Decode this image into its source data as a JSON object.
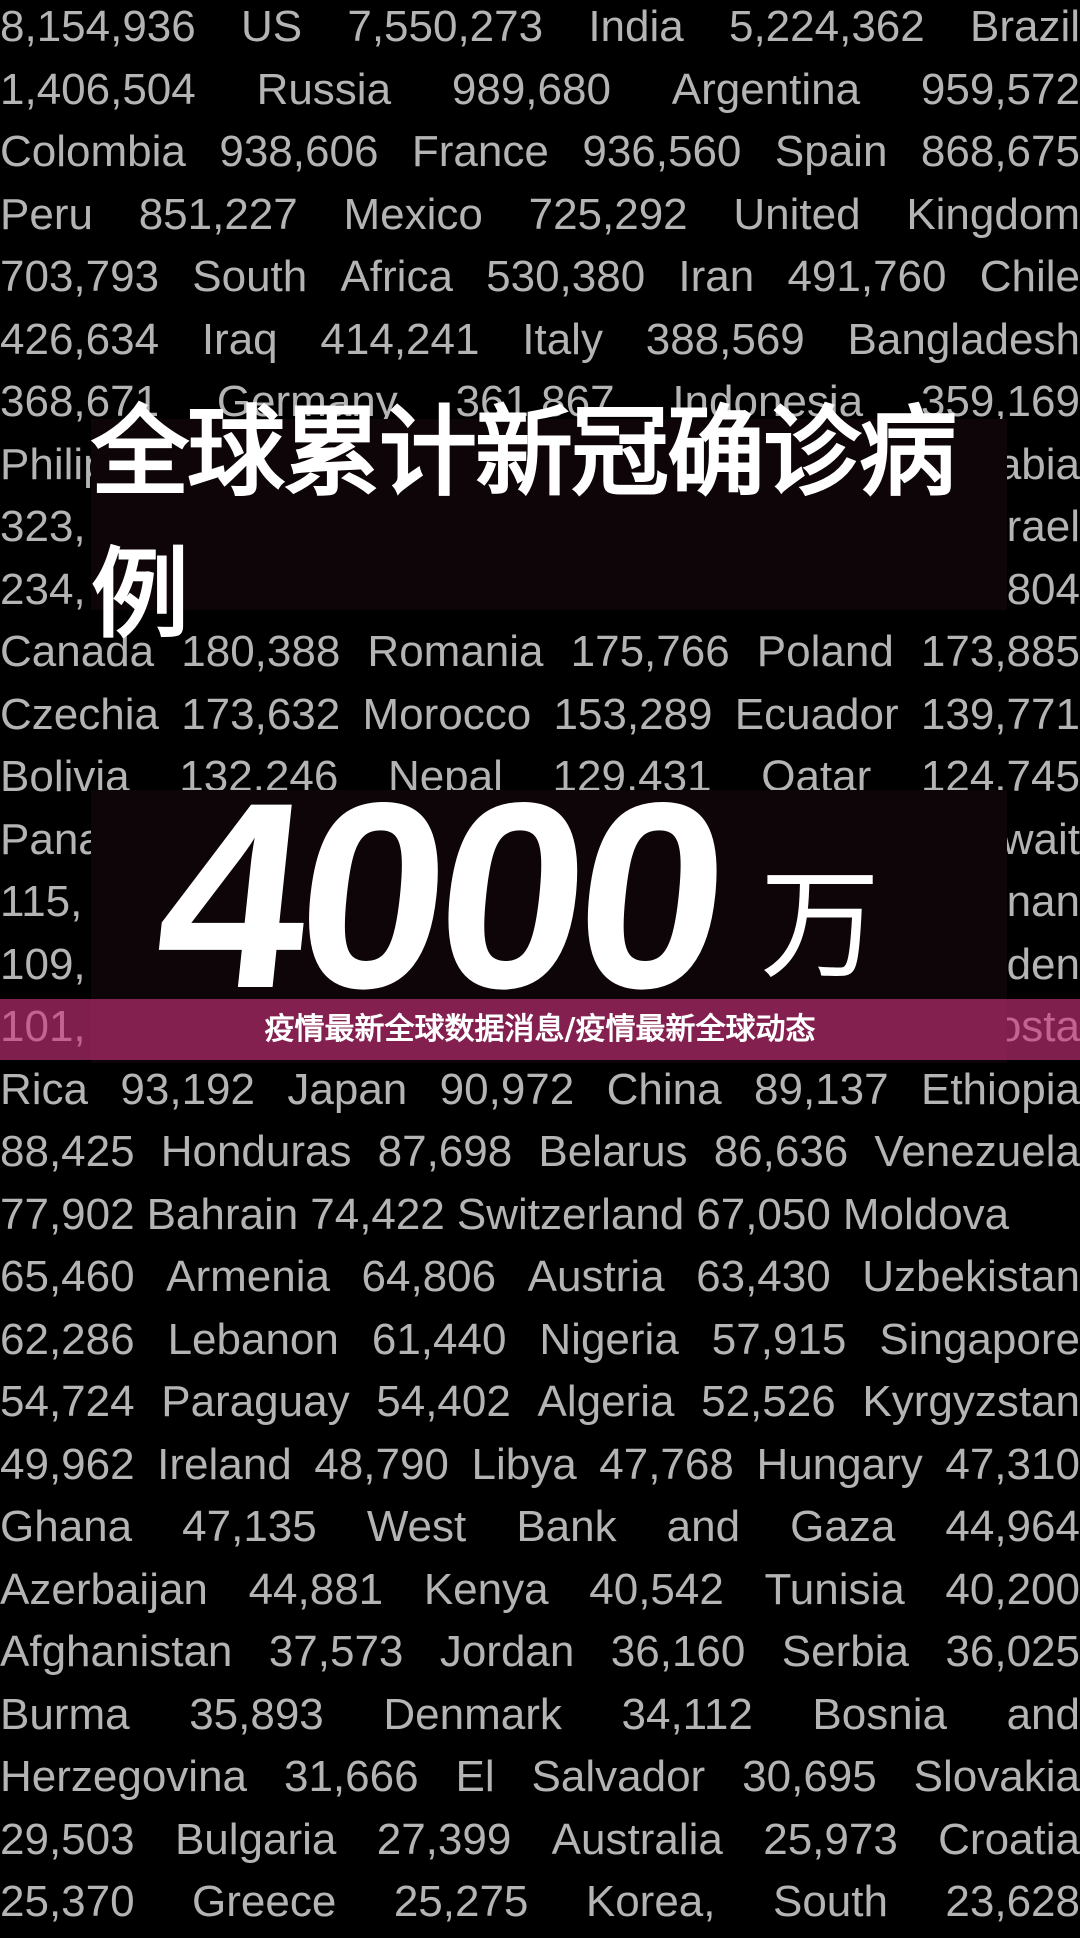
{
  "background_rows": [
    [
      "8,154,936",
      "US",
      "7,550,273",
      "India",
      "5,224,362",
      "Brazil"
    ],
    [
      "1,406,504",
      "Russia",
      "989,680",
      "Argentina",
      "959,572"
    ],
    [
      "Colombia",
      "938,606",
      "France",
      "936,560",
      "Spain",
      "868,675"
    ],
    [
      "Peru",
      "851,227",
      "Mexico",
      "725,292",
      "United",
      "Kingdom"
    ],
    [
      "703,793",
      "South",
      "Africa",
      "530,380",
      "Iran",
      "491,760",
      "Chile"
    ],
    [
      "426,634",
      "Iraq",
      "414,241",
      "Italy",
      "388,569",
      "Bangladesh"
    ],
    [
      "368,671",
      "Germany",
      "361,867",
      "Indonesia",
      "359,169"
    ],
    [
      "Philip",
      "abia"
    ],
    [
      "323,",
      "rael"
    ],
    [
      "234,",
      "804"
    ],
    [
      "Canada",
      "180,388",
      "Romania",
      "175,766",
      "Poland",
      "173,885"
    ],
    [
      "Czechia",
      "173,632",
      "Morocco",
      "153,289",
      "Ecuador",
      "139,771"
    ],
    [
      "Bolivia",
      "132,246",
      "Nepal",
      "129,431",
      "Qatar",
      "124,745"
    ],
    [
      "Pana",
      "wait"
    ],
    [
      "115,",
      "nan"
    ],
    [
      "109,",
      "den"
    ],
    [
      "101,",
      "osta"
    ],
    [
      "Rica",
      "93,192",
      "Japan",
      "90,972",
      "China",
      "89,137",
      "Ethiopia"
    ],
    [
      "88,425",
      "Honduras",
      "87,698",
      "Belarus",
      "86,636",
      "Venezuela"
    ],
    [
      "77,902",
      "Bahrain",
      "74,422",
      "Switzerland",
      "67,050",
      "Moldova"
    ],
    [
      "65,460",
      "Armenia",
      "64,806",
      "Austria",
      "63,430",
      "Uzbekistan"
    ],
    [
      "62,286",
      "Lebanon",
      "61,440",
      "Nigeria",
      "57,915",
      "Singapore"
    ],
    [
      "54,724",
      "Paraguay",
      "54,402",
      "Algeria",
      "52,526",
      "Kyrgyzstan"
    ],
    [
      "49,962",
      "Ireland",
      "48,790",
      "Libya",
      "47,768",
      "Hungary",
      "47,310"
    ],
    [
      "Ghana",
      "47,135",
      "West",
      "Bank",
      "and",
      "Gaza",
      "44,964"
    ],
    [
      "Azerbaijan",
      "44,881",
      "Kenya",
      "40,542",
      "Tunisia",
      "40,200"
    ],
    [
      "Afghanistan",
      "37,573",
      "Jordan",
      "36,160",
      "Serbia",
      "36,025"
    ],
    [
      "Burma",
      "35,893",
      "Denmark",
      "34,112",
      "Bosnia",
      "and"
    ],
    [
      "Herzegovina",
      "31,666",
      "El",
      "Salvador",
      "30,695",
      "Slovakia"
    ],
    [
      "29,503",
      "Bulgaria",
      "27,399",
      "Australia",
      "25,973",
      "Croatia"
    ],
    [
      "25,370",
      "Greece",
      "25,275",
      "Korea,",
      "South",
      "23,628"
    ]
  ],
  "left_aligned_rows": [
    19
  ],
  "headline": "全球累计新冠确诊病例",
  "big_number": "4000",
  "big_number_unit": "万",
  "banner_text": "疫情最新全球数据消息/疫情最新全球动态",
  "colors": {
    "background": "#000000",
    "text_grey": "#b4b4b4",
    "banner": "#cd327d"
  }
}
